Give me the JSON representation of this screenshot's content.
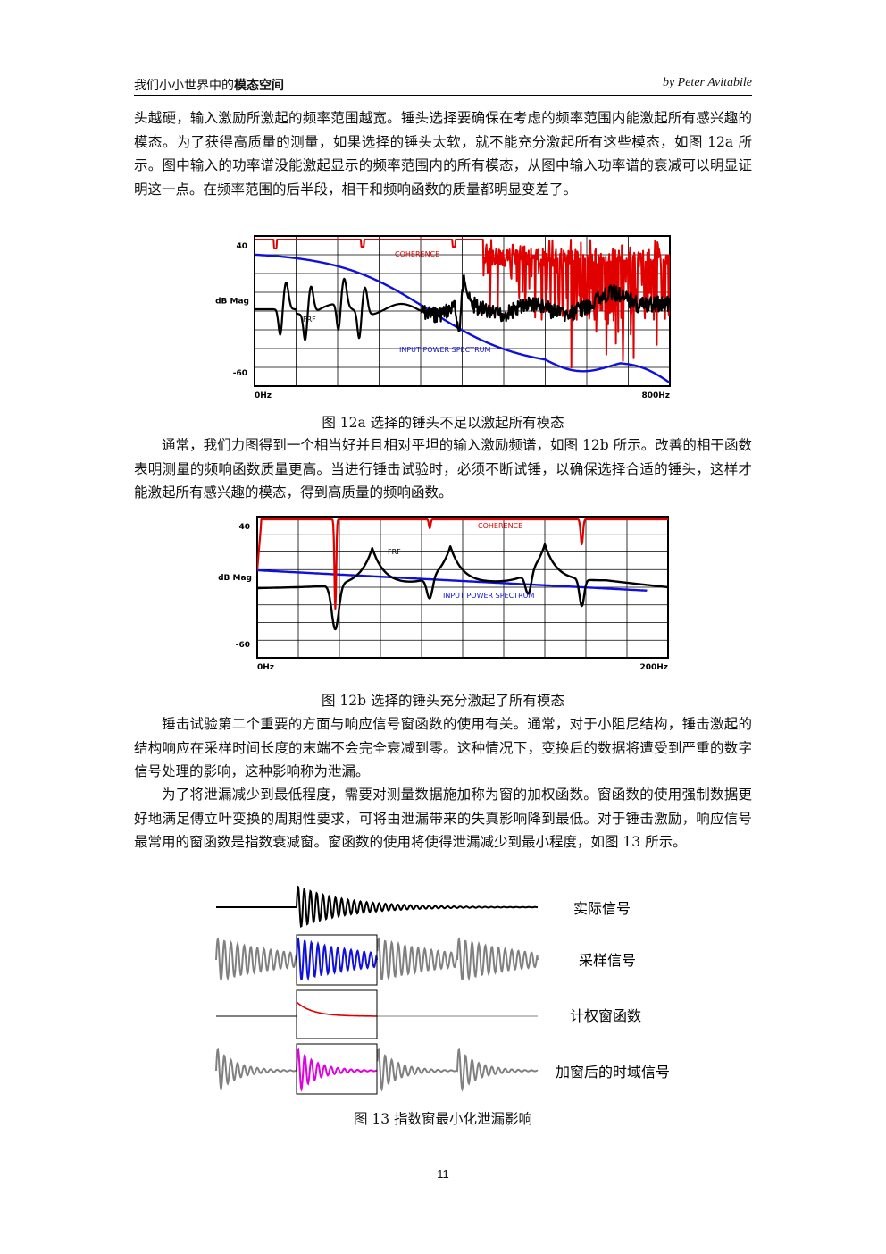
{
  "header": {
    "left_plain": "我们小小世界中的",
    "left_bold": "模态空间",
    "right": "by Peter Avitabile"
  },
  "paragraphs": {
    "p1": "头越硬，输入激励所激起的频率范围越宽。锤头选择要确保在考虑的频率范围内能激起所有感兴趣的模态。为了获得高质量的测量，如果选择的锤头太软，就不能充分激起所有这些模态，如图 12a 所示。图中输入的功率谱没能激起显示的频率范围内的所有模态，从图中输入功率谱的衰减可以明显证明这一点。在频率范围的后半段，相干和频响函数的质量都明显变差了。",
    "p2": "通常，我们力图得到一个相当好并且相对平坦的输入激励频谱，如图 12b 所示。改善的相干函数表明测量的频响函数质量更高。当进行锤击试验时，必须不断试锤，以确保选择合适的锤头，这样才能激起所有感兴趣的模态，得到高质量的频响函数。",
    "p3": "锤击试验第二个重要的方面与响应信号窗函数的使用有关。通常，对于小阻尼结构，锤击激起的结构响应在采样时间长度的末端不会完全衰减到零。这种情况下，变换后的数据将遭受到严重的数字信号处理的影响，这种影响称为泄漏。",
    "p4": "为了将泄漏减少到最低程度，需要对测量数据施加称为窗的加权函数。窗函数的使用强制数据更好地满足傅立叶变换的周期性要求，可将由泄漏带来的失真影响降到最低。对于锤击激励，响应信号最常用的窗函数是指数衰减窗。窗函数的使用将使得泄漏减少到最小程度，如图 13 所示。"
  },
  "captions": {
    "fig12a": "图 12a  选择的锤头不足以激起所有模态",
    "fig12b": "图 12b  选择的锤头充分激起了所有模态",
    "fig13": "图 13  指数窗最小化泄漏影响"
  },
  "chart_data": [
    {
      "type": "line",
      "id": "fig12a",
      "ylabel": "dB Mag",
      "ytick_top": "40",
      "ytick_bottom": "-60",
      "xtick_left": "0Hz",
      "xtick_right": "800Hz",
      "ylim": [
        -60,
        40
      ],
      "xlim": [
        0,
        800
      ],
      "grid": true,
      "series": [
        {
          "name": "COHERENCE",
          "color": "#e00000"
        },
        {
          "name": "FRF",
          "color": "#000000"
        },
        {
          "name": "INPUT POWER SPECTRUM",
          "color": "#1010dd"
        }
      ]
    },
    {
      "type": "line",
      "id": "fig12b",
      "ylabel": "dB Mag",
      "ytick_top": "40",
      "ytick_bottom": "-60",
      "xtick_left": "0Hz",
      "xtick_right": "200Hz",
      "ylim": [
        -60,
        40
      ],
      "xlim": [
        0,
        200
      ],
      "grid": true,
      "series": [
        {
          "name": "COHERENCE",
          "color": "#e00000"
        },
        {
          "name": "FRF",
          "color": "#000000"
        },
        {
          "name": "INPUT POWER SPECTRUM",
          "color": "#1010dd"
        }
      ]
    }
  ],
  "fig13": {
    "labels": [
      "实际信号",
      "采样信号",
      "计权窗函数",
      "加窗后的时域信号"
    ],
    "colors": {
      "actual": "#000000",
      "sampled_window": "#1010dd",
      "window_fn": "#e00000",
      "windowed": "#e000e0",
      "outside": "#808080"
    }
  },
  "page_number": "11"
}
